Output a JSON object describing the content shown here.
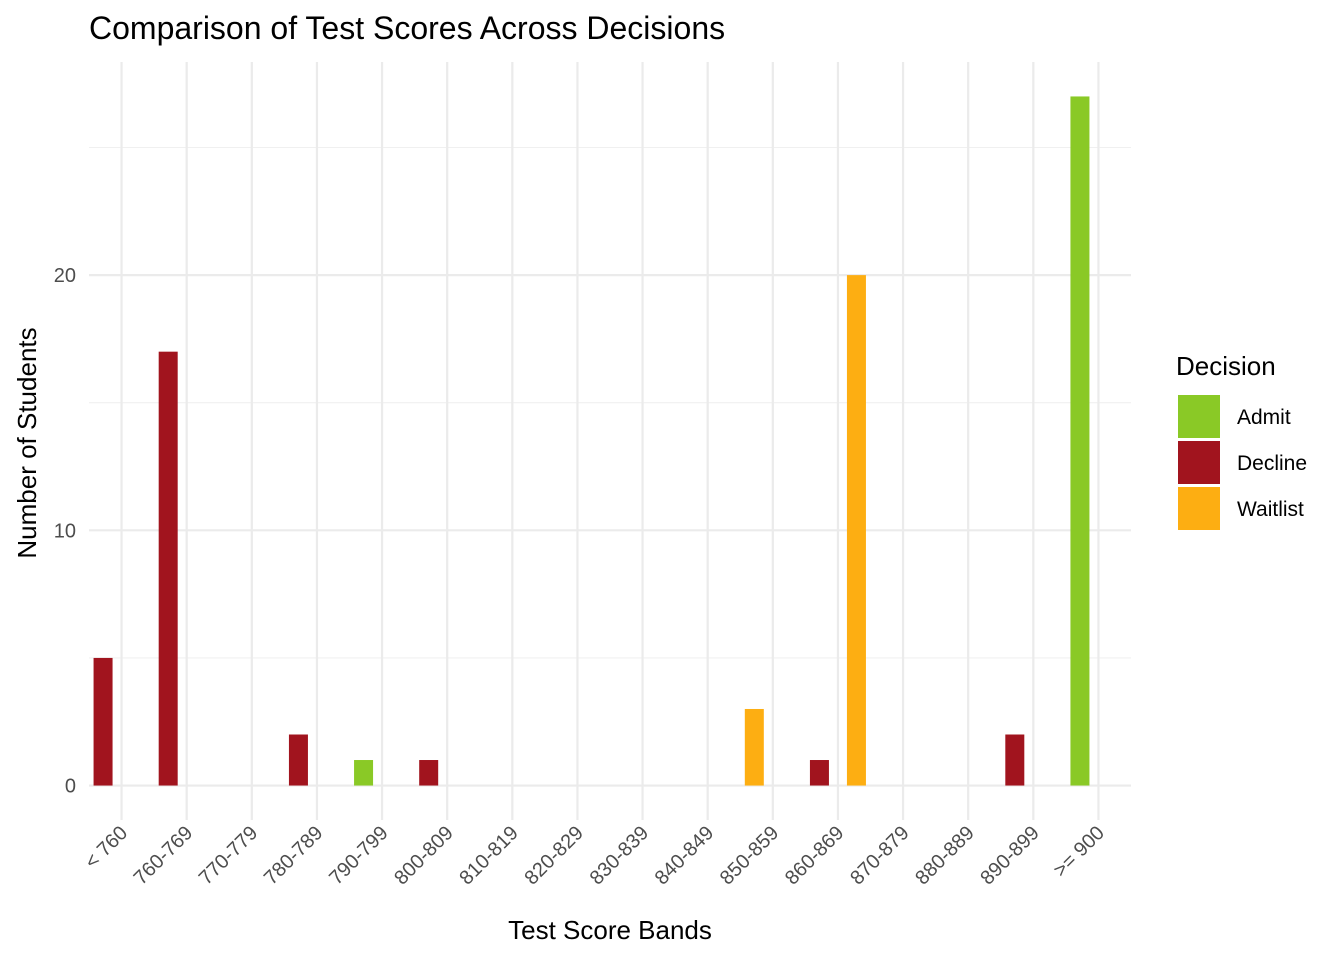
{
  "chart_data": {
    "type": "bar",
    "title": "Comparison of Test Scores Across Decisions",
    "xlabel": "Test Score Bands",
    "ylabel": "Number of Students",
    "categories": [
      "< 760",
      "760-769",
      "770-779",
      "780-789",
      "790-799",
      "800-809",
      "810-819",
      "820-829",
      "830-839",
      "840-849",
      "850-859",
      "860-869",
      "870-879",
      "880-889",
      "890-899",
      ">= 900"
    ],
    "bars": [
      {
        "category": "< 760",
        "decision": "Decline",
        "value": 5,
        "side": "left"
      },
      {
        "category": "760-769",
        "decision": "Decline",
        "value": 17,
        "side": "left"
      },
      {
        "category": "780-789",
        "decision": "Decline",
        "value": 2,
        "side": "left"
      },
      {
        "category": "790-799",
        "decision": "Admit",
        "value": 1,
        "side": "left"
      },
      {
        "category": "800-809",
        "decision": "Decline",
        "value": 1,
        "side": "left"
      },
      {
        "category": "850-859",
        "decision": "Waitlist",
        "value": 3,
        "side": "left"
      },
      {
        "category": "860-869",
        "decision": "Decline",
        "value": 1,
        "side": "left"
      },
      {
        "category": "860-869",
        "decision": "Waitlist",
        "value": 20,
        "side": "right"
      },
      {
        "category": "890-899",
        "decision": "Decline",
        "value": 2,
        "side": "left"
      },
      {
        "category": ">= 900",
        "decision": "Admit",
        "value": 27,
        "side": "left"
      }
    ],
    "ylim": [
      -1.35,
      28.35
    ],
    "yticks": [
      0,
      10,
      20
    ],
    "grid": true,
    "legend": {
      "title": "Decision",
      "placement": "right",
      "entries": [
        {
          "name": "Admit",
          "color": "#8ac926"
        },
        {
          "name": "Decline",
          "color": "#a1141e"
        },
        {
          "name": "Waitlist",
          "color": "#fdae12"
        }
      ]
    }
  }
}
